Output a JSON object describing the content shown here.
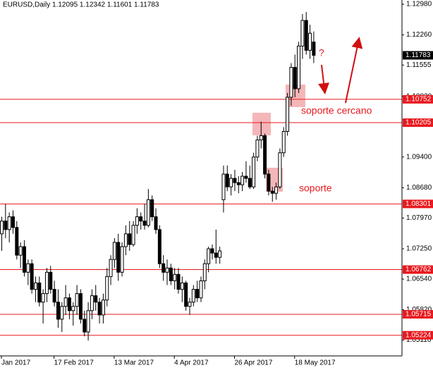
{
  "chart_data": {
    "type": "candlestick",
    "title": "EURUSD,Daily  1.12095 1.12342 1.11601 1.11783",
    "categories": [
      "Jan 2017",
      null,
      null,
      null,
      null,
      null,
      null,
      null,
      null,
      null,
      null,
      null,
      null,
      null,
      "17 Feb 2017",
      null,
      null,
      null,
      null,
      null,
      null,
      null,
      null,
      null,
      null,
      null,
      null,
      null,
      null,
      null,
      "13 Mar 2017",
      null,
      null,
      null,
      null,
      null,
      null,
      null,
      null,
      null,
      null,
      null,
      null,
      null,
      null,
      null,
      "4 Apr 2017",
      null,
      null,
      null,
      null,
      null,
      null,
      null,
      null,
      null,
      null,
      null,
      null,
      null,
      null,
      null,
      "26 Apr 2017",
      null,
      null,
      null,
      null,
      null,
      null,
      null,
      null,
      null,
      null,
      null,
      null,
      null,
      null,
      null,
      "18 May 2017",
      null,
      null,
      null,
      null,
      null
    ],
    "ohlc": [
      [
        1.076,
        1.08,
        1.072,
        1.079
      ],
      [
        1.079,
        1.083,
        1.075,
        1.077
      ],
      [
        1.077,
        1.081,
        1.074,
        1.08
      ],
      [
        1.08,
        1.0815,
        1.076,
        1.0775
      ],
      [
        1.0775,
        1.079,
        1.07,
        1.071
      ],
      [
        1.071,
        1.074,
        1.068,
        1.073
      ],
      [
        1.073,
        1.0745,
        1.066,
        1.067
      ],
      [
        1.067,
        1.07,
        1.064,
        1.069
      ],
      [
        1.069,
        1.07,
        1.062,
        1.063
      ],
      [
        1.063,
        1.066,
        1.06,
        1.0645
      ],
      [
        1.0645,
        1.066,
        1.059,
        1.06
      ],
      [
        1.06,
        1.063,
        1.055,
        1.062
      ],
      [
        1.062,
        1.068,
        1.06,
        1.067
      ],
      [
        1.067,
        1.0685,
        1.062,
        1.063
      ],
      [
        1.063,
        1.065,
        1.059,
        1.06
      ],
      [
        1.06,
        1.063,
        1.054,
        1.056
      ],
      [
        1.056,
        1.06,
        1.053,
        1.059
      ],
      [
        1.059,
        1.064,
        1.057,
        1.061
      ],
      [
        1.061,
        1.062,
        1.056,
        1.058
      ],
      [
        1.058,
        1.06,
        1.0545,
        1.059
      ],
      [
        1.059,
        1.064,
        1.057,
        1.062
      ],
      [
        1.062,
        1.063,
        1.055,
        1.056
      ],
      [
        1.056,
        1.058,
        1.052,
        1.053
      ],
      [
        1.053,
        1.06,
        1.051,
        1.058
      ],
      [
        1.058,
        1.063,
        1.056,
        1.0615
      ],
      [
        1.0615,
        1.064,
        1.058,
        1.06
      ],
      [
        1.06,
        1.061,
        1.055,
        1.057
      ],
      [
        1.057,
        1.062,
        1.055,
        1.0605
      ],
      [
        1.0605,
        1.068,
        1.059,
        1.066
      ],
      [
        1.066,
        1.071,
        1.064,
        1.07
      ],
      [
        1.07,
        1.075,
        1.068,
        1.074
      ],
      [
        1.074,
        1.076,
        1.065,
        1.067
      ],
      [
        1.067,
        1.074,
        1.066,
        1.073
      ],
      [
        1.073,
        1.078,
        1.071,
        1.076
      ],
      [
        1.076,
        1.079,
        1.072,
        1.0735
      ],
      [
        1.0735,
        1.079,
        1.073,
        1.078
      ],
      [
        1.078,
        1.082,
        1.076,
        1.08
      ],
      [
        1.08,
        1.081,
        1.077,
        1.079
      ],
      [
        1.079,
        1.083,
        1.077,
        1.078
      ],
      [
        1.078,
        1.0865,
        1.0775,
        1.084
      ],
      [
        1.084,
        1.085,
        1.079,
        1.08
      ],
      [
        1.08,
        1.082,
        1.076,
        1.077
      ],
      [
        1.077,
        1.078,
        1.068,
        1.069
      ],
      [
        1.069,
        1.071,
        1.065,
        1.067
      ],
      [
        1.067,
        1.07,
        1.064,
        1.068
      ],
      [
        1.068,
        1.069,
        1.064,
        1.065
      ],
      [
        1.065,
        1.068,
        1.063,
        1.0665
      ],
      [
        1.0665,
        1.068,
        1.062,
        1.063
      ],
      [
        1.063,
        1.066,
        1.06,
        1.0645
      ],
      [
        1.0645,
        1.065,
        1.058,
        1.059
      ],
      [
        1.059,
        1.061,
        1.057,
        1.06
      ],
      [
        1.06,
        1.064,
        1.059,
        1.063
      ],
      [
        1.063,
        1.065,
        1.06,
        1.061
      ],
      [
        1.061,
        1.066,
        1.06,
        1.065
      ],
      [
        1.065,
        1.07,
        1.063,
        1.069
      ],
      [
        1.069,
        1.073,
        1.067,
        1.0725
      ],
      [
        1.0725,
        1.0735,
        1.07,
        1.0715
      ],
      [
        1.0715,
        1.077,
        1.069,
        1.0705
      ],
      [
        1.0705,
        1.073,
        1.069,
        1.072
      ],
      [
        1.084,
        1.092,
        1.081,
        1.09
      ],
      [
        1.09,
        1.092,
        1.086,
        1.087
      ],
      [
        1.087,
        1.09,
        1.085,
        1.089
      ],
      [
        1.089,
        1.091,
        1.086,
        1.088
      ],
      [
        1.088,
        1.0895,
        1.0855,
        1.0875
      ],
      [
        1.0875,
        1.0905,
        1.086,
        1.0895
      ],
      [
        1.0895,
        1.093,
        1.088,
        1.089
      ],
      [
        1.089,
        1.092,
        1.0865,
        1.087
      ],
      [
        1.087,
        1.095,
        1.0865,
        1.094
      ],
      [
        1.094,
        1.099,
        1.093,
        1.098
      ],
      [
        1.098,
        1.1023,
        1.096,
        1.099
      ],
      [
        1.099,
        1.0995,
        1.089,
        1.09
      ],
      [
        1.09,
        1.091,
        1.085,
        1.086
      ],
      [
        1.086,
        1.087,
        1.0835,
        1.0855
      ],
      [
        1.0855,
        1.088,
        1.084,
        1.087
      ],
      [
        1.087,
        1.096,
        1.0865,
        1.095
      ],
      [
        1.095,
        1.101,
        1.094,
        1.1
      ],
      [
        1.1,
        1.109,
        1.099,
        1.108
      ],
      [
        1.108,
        1.116,
        1.106,
        1.115
      ],
      [
        1.115,
        1.118,
        1.108,
        1.11
      ],
      [
        1.11,
        1.121,
        1.109,
        1.12
      ],
      [
        1.12,
        1.1275,
        1.117,
        1.126
      ],
      [
        1.126,
        1.128,
        1.118,
        1.119
      ],
      [
        1.119,
        1.125,
        1.117,
        1.123
      ],
      [
        1.12095,
        1.12342,
        1.11601,
        1.11783
      ]
    ],
    "ylim": [
      1.0474,
      1.13079
    ],
    "yticks": [
      {
        "value": 1.1298,
        "label": "1.12980"
      },
      {
        "value": 1.1226,
        "label": "1.12260"
      },
      {
        "value": 1.11555,
        "label": "1.11555"
      },
      {
        "value": 1.1082,
        "label": "1.10820"
      },
      {
        "value": 1.094,
        "label": "1.09400"
      },
      {
        "value": 1.0868,
        "label": "1.08680"
      },
      {
        "value": 1.0797,
        "label": "1.07970"
      },
      {
        "value": 1.0725,
        "label": "1.07250"
      },
      {
        "value": 1.0654,
        "label": "1.06540"
      },
      {
        "value": 1.0582,
        "label": "1.05820"
      },
      {
        "value": 1.0511,
        "label": "1.05110"
      }
    ],
    "levels": [
      {
        "value": 1.10752,
        "label": "1.10752"
      },
      {
        "value": 1.10205,
        "label": "1.10205"
      },
      {
        "value": 1.08301,
        "label": "1.08301"
      },
      {
        "value": 1.06762,
        "label": "1.06762"
      },
      {
        "value": 1.05715,
        "label": "1.05715"
      },
      {
        "value": 1.05224,
        "label": "1.05224"
      }
    ],
    "level_color": "#e8191e",
    "last_price": {
      "value": 1.11783,
      "label": "1.11783"
    },
    "annotations": [
      "soporte cercano",
      "soporte",
      "?"
    ]
  }
}
